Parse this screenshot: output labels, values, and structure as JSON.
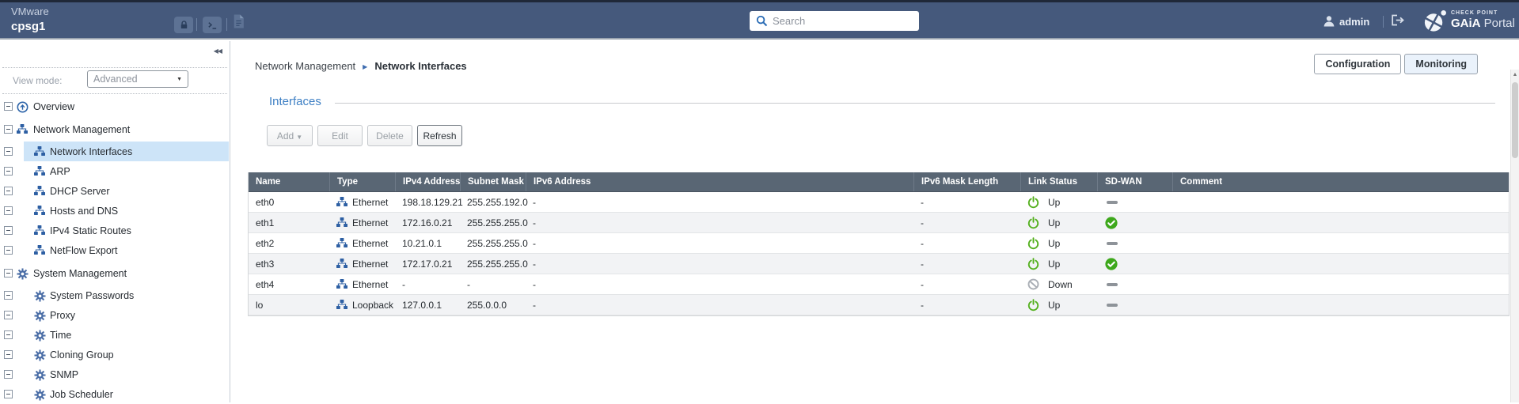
{
  "topbar": {
    "brand": "VMware",
    "hostname": "cpsg1",
    "icons": [
      "lock-icon",
      "terminal-icon",
      "document-icon"
    ],
    "search_placeholder": "Search",
    "user": "admin",
    "logo_top": "CHECK POINT",
    "logo_bold": "GAiA",
    "logo_light": " Portal"
  },
  "sidebar": {
    "collapse_icon": "◀◀",
    "view_mode_label": "View mode:",
    "view_mode_value": "Advanced",
    "items": [
      {
        "label": "Overview",
        "icon": "overview",
        "level": 0,
        "expandable": false,
        "selected": false
      },
      {
        "label": "Network Management",
        "icon": "network",
        "level": 0,
        "expandable": true,
        "selected": false
      },
      {
        "label": "Network Interfaces",
        "icon": "network",
        "level": 1,
        "expandable": false,
        "selected": true
      },
      {
        "label": "ARP",
        "icon": "network",
        "level": 1,
        "expandable": false,
        "selected": false
      },
      {
        "label": "DHCP Server",
        "icon": "network",
        "level": 1,
        "expandable": false,
        "selected": false
      },
      {
        "label": "Hosts and DNS",
        "icon": "network",
        "level": 1,
        "expandable": false,
        "selected": false
      },
      {
        "label": "IPv4 Static Routes",
        "icon": "network",
        "level": 1,
        "expandable": false,
        "selected": false
      },
      {
        "label": "NetFlow Export",
        "icon": "network",
        "level": 1,
        "expandable": false,
        "selected": false
      },
      {
        "label": "System Management",
        "icon": "gear",
        "level": 0,
        "expandable": true,
        "selected": false
      },
      {
        "label": "System Passwords",
        "icon": "gear",
        "level": 1,
        "expandable": false,
        "selected": false
      },
      {
        "label": "Proxy",
        "icon": "gear",
        "level": 1,
        "expandable": false,
        "selected": false
      },
      {
        "label": "Time",
        "icon": "gear",
        "level": 1,
        "expandable": false,
        "selected": false
      },
      {
        "label": "Cloning Group",
        "icon": "gear",
        "level": 1,
        "expandable": false,
        "selected": false
      },
      {
        "label": "SNMP",
        "icon": "gear",
        "level": 1,
        "expandable": false,
        "selected": false
      },
      {
        "label": "Job Scheduler",
        "icon": "gear",
        "level": 1,
        "expandable": false,
        "selected": false
      }
    ]
  },
  "main": {
    "breadcrumb": {
      "parent": "Network Management",
      "current": "Network Interfaces"
    },
    "mode_buttons": [
      {
        "label": "Configuration",
        "active": false
      },
      {
        "label": "Monitoring",
        "active": true
      }
    ],
    "section_title": "Interfaces",
    "toolbar": {
      "add": "Add",
      "edit": "Edit",
      "delete": "Delete",
      "refresh": "Refresh"
    },
    "table": {
      "columns": [
        "Name",
        "Type",
        "IPv4 Address",
        "Subnet Mask",
        "IPv6 Address",
        "IPv6 Mask Length",
        "Link Status",
        "SD-WAN",
        "Comment"
      ],
      "rows": [
        {
          "name": "eth0",
          "type": "Ethernet",
          "type_icon": "ethernet-icon",
          "ipv4": "198.18.129.21",
          "subnet": "255.255.192.0",
          "ipv6": "-",
          "ipv6_mask": "-",
          "link": "Up",
          "link_icon": "power-on-icon",
          "sdwan": "dash",
          "comment": ""
        },
        {
          "name": "eth1",
          "type": "Ethernet",
          "type_icon": "ethernet-icon",
          "ipv4": "172.16.0.21",
          "subnet": "255.255.255.0",
          "ipv6": "-",
          "ipv6_mask": "-",
          "link": "Up",
          "link_icon": "power-on-icon",
          "sdwan": "check",
          "comment": ""
        },
        {
          "name": "eth2",
          "type": "Ethernet",
          "type_icon": "ethernet-icon",
          "ipv4": "10.21.0.1",
          "subnet": "255.255.255.0",
          "ipv6": "-",
          "ipv6_mask": "-",
          "link": "Up",
          "link_icon": "power-on-icon",
          "sdwan": "dash",
          "comment": ""
        },
        {
          "name": "eth3",
          "type": "Ethernet",
          "type_icon": "ethernet-icon",
          "ipv4": "172.17.0.21",
          "subnet": "255.255.255.0",
          "ipv6": "-",
          "ipv6_mask": "-",
          "link": "Up",
          "link_icon": "power-on-icon",
          "sdwan": "check",
          "comment": ""
        },
        {
          "name": "eth4",
          "type": "Ethernet",
          "type_icon": "ethernet-icon",
          "ipv4": "-",
          "subnet": "-",
          "ipv6": "-",
          "ipv6_mask": "-",
          "link": "Down",
          "link_icon": "blocked-icon",
          "sdwan": "dash",
          "comment": ""
        },
        {
          "name": "lo",
          "type": "Loopback",
          "type_icon": "loopback-icon",
          "ipv4": "127.0.0.1",
          "subnet": "255.0.0.0",
          "ipv6": "-",
          "ipv6_mask": "-",
          "link": "Up",
          "link_icon": "power-on-icon",
          "sdwan": "dash",
          "comment": ""
        }
      ]
    }
  },
  "colors": {
    "topbar_bg": "#45597c",
    "table_header_bg": "#596674",
    "selected_item_bg": "#cde4f8",
    "accent_blue": "#3d7fc4",
    "status_up_green": "#54b01e",
    "sdwan_check_green": "#3ea81c",
    "status_down_gray": "#a9aeb5"
  }
}
